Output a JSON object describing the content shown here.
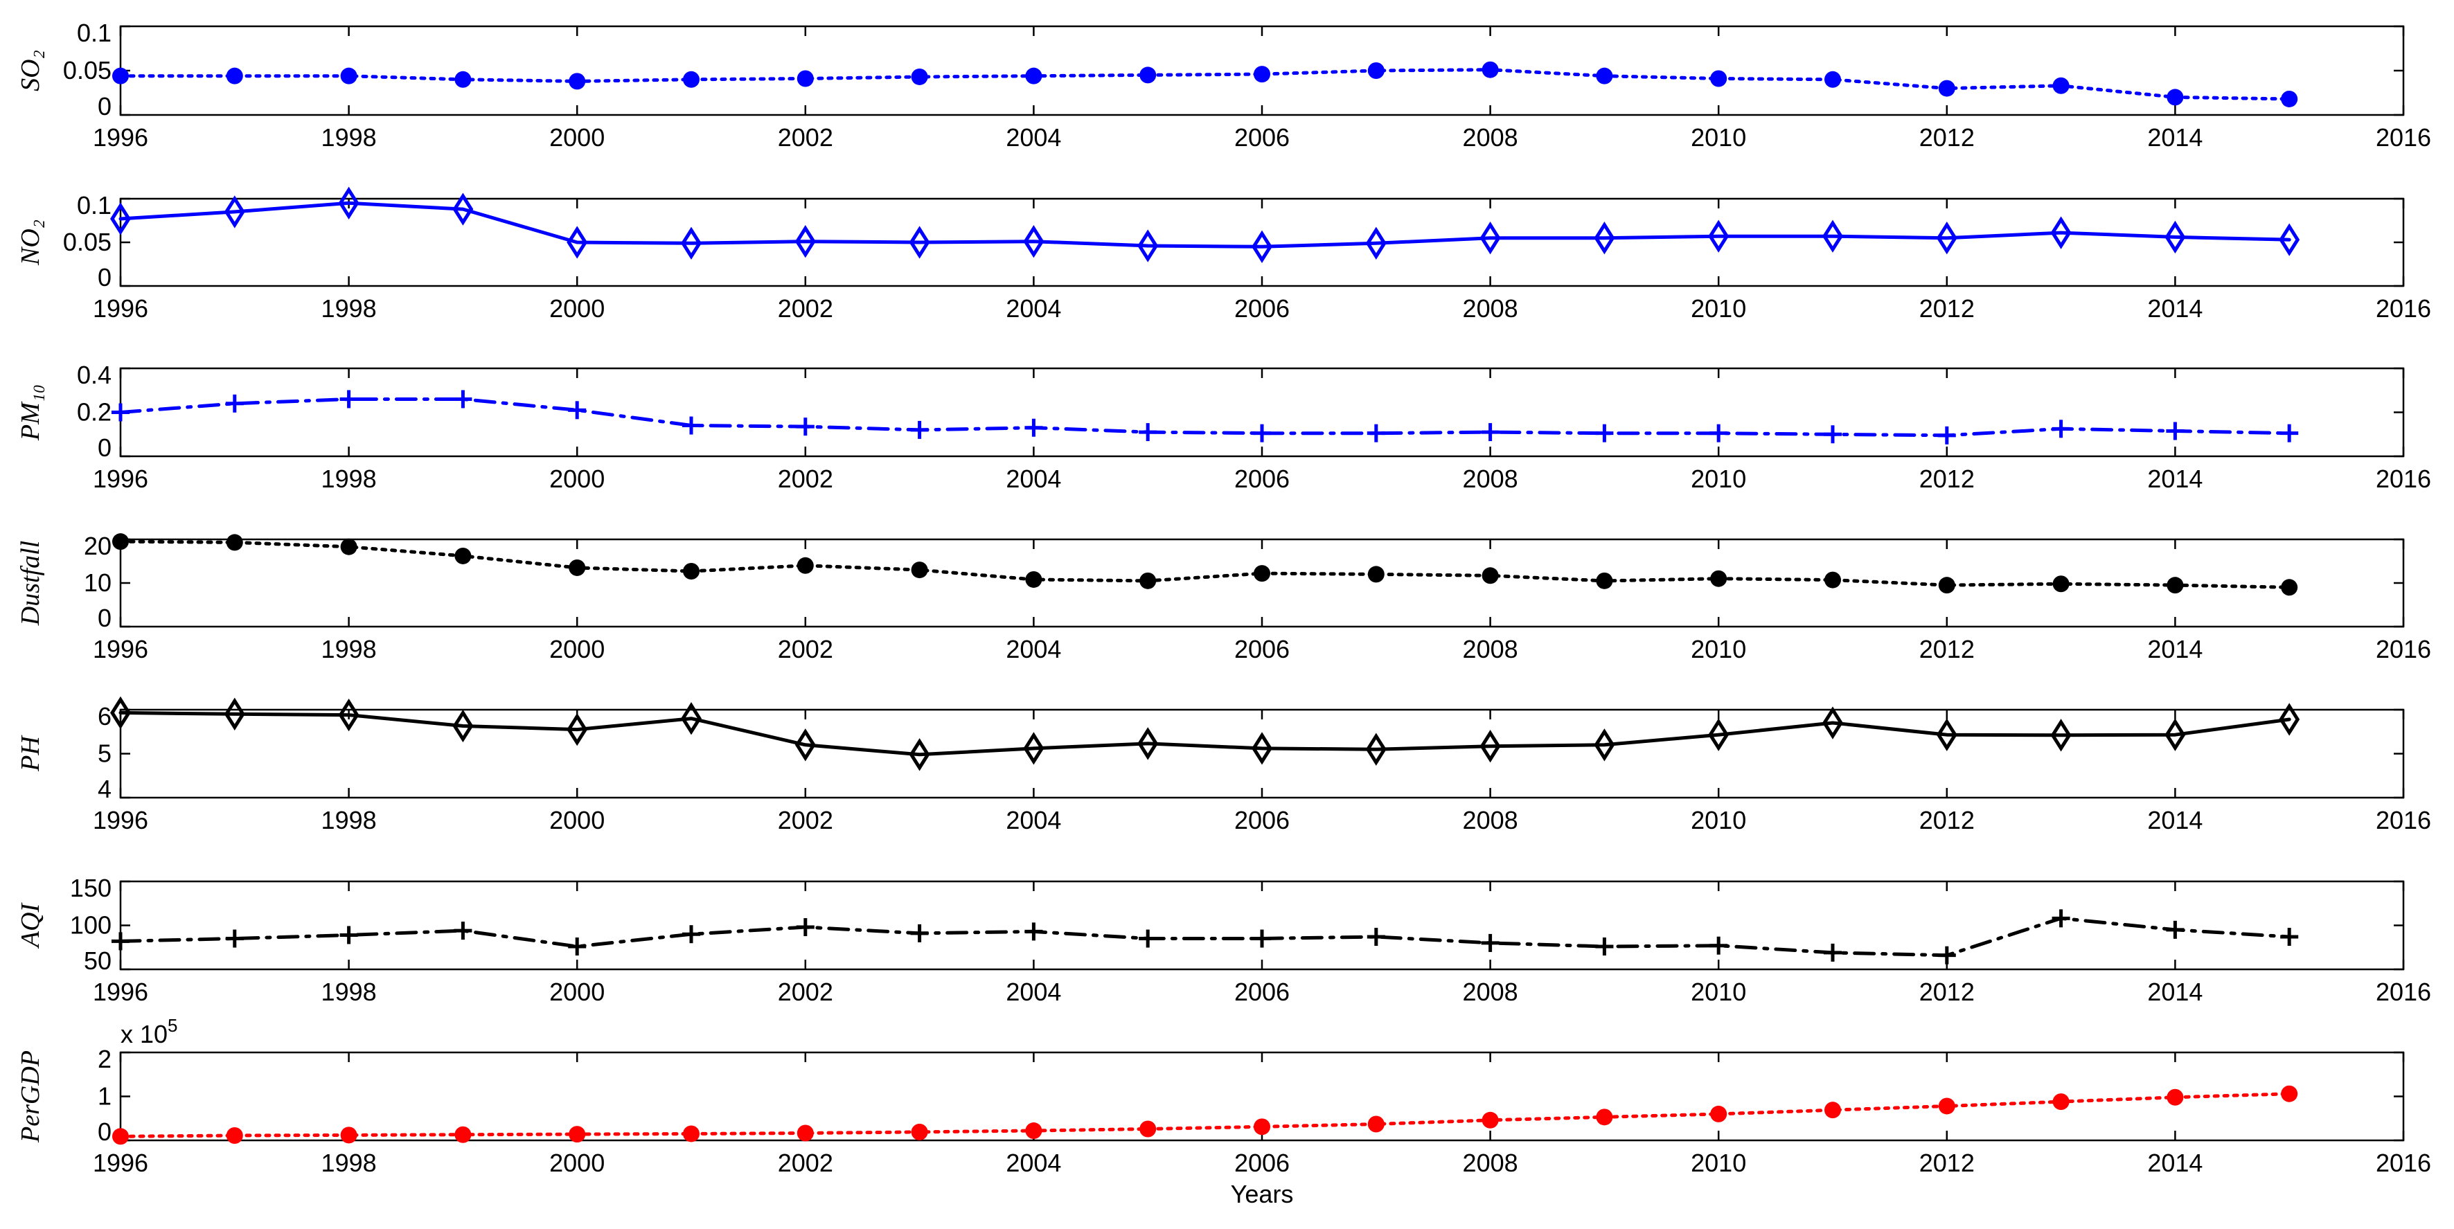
{
  "chart_data": [
    {
      "type": "line",
      "ylabel": "SO₂",
      "ylim": [
        0,
        0.1
      ],
      "yticks": [
        0,
        0.05,
        0.1
      ],
      "ytick_labels": [
        "0",
        "0.05",
        "0.1"
      ],
      "xlim": [
        1996,
        2016
      ],
      "xticks": [
        1996,
        1998,
        2000,
        2002,
        2004,
        2006,
        2008,
        2010,
        2012,
        2014,
        2016
      ],
      "xtick_labels": [
        "1996",
        "1998",
        "2000",
        "2002",
        "2004",
        "2006",
        "2008",
        "2010",
        "2012",
        "2014",
        "2016"
      ],
      "series": [
        {
          "name": "SO2",
          "color": "#0000ff",
          "line": "dotted",
          "marker": "circle",
          "x": [
            1996,
            1997,
            1998,
            1999,
            2000,
            2001,
            2002,
            2003,
            2004,
            2005,
            2006,
            2007,
            2008,
            2009,
            2010,
            2011,
            2012,
            2013,
            2014,
            2015
          ],
          "values": [
            0.044,
            0.044,
            0.044,
            0.04,
            0.038,
            0.04,
            0.041,
            0.043,
            0.044,
            0.045,
            0.046,
            0.05,
            0.051,
            0.044,
            0.041,
            0.04,
            0.03,
            0.033,
            0.02,
            0.018
          ]
        }
      ]
    },
    {
      "type": "line",
      "ylabel": "NO₂",
      "ylim": [
        0,
        0.1
      ],
      "yticks": [
        0,
        0.05,
        0.1
      ],
      "ytick_labels": [
        "0",
        "0.05",
        "0.1"
      ],
      "xlim": [
        1996,
        2016
      ],
      "xticks": [
        1996,
        1998,
        2000,
        2002,
        2004,
        2006,
        2008,
        2010,
        2012,
        2014,
        2016
      ],
      "xtick_labels": [
        "1996",
        "1998",
        "2000",
        "2002",
        "2004",
        "2006",
        "2008",
        "2010",
        "2012",
        "2014",
        "2016"
      ],
      "series": [
        {
          "name": "NO2",
          "color": "#0000ff",
          "line": "solid",
          "marker": "diamond",
          "x": [
            1996,
            1997,
            1998,
            1999,
            2000,
            2001,
            2002,
            2003,
            2004,
            2005,
            2006,
            2007,
            2008,
            2009,
            2010,
            2011,
            2012,
            2013,
            2014,
            2015
          ],
          "values": [
            0.077,
            0.085,
            0.095,
            0.088,
            0.05,
            0.049,
            0.051,
            0.05,
            0.051,
            0.046,
            0.045,
            0.049,
            0.055,
            0.055,
            0.057,
            0.057,
            0.055,
            0.061,
            0.056,
            0.053
          ]
        }
      ]
    },
    {
      "type": "line",
      "ylabel": "PM₁₀",
      "ylim": [
        0,
        0.4
      ],
      "yticks": [
        0,
        0.2,
        0.4
      ],
      "ytick_labels": [
        "0",
        "0.2",
        "0.4"
      ],
      "xlim": [
        1996,
        2016
      ],
      "xticks": [
        1996,
        1998,
        2000,
        2002,
        2004,
        2006,
        2008,
        2010,
        2012,
        2014,
        2016
      ],
      "xtick_labels": [
        "1996",
        "1998",
        "2000",
        "2002",
        "2004",
        "2006",
        "2008",
        "2010",
        "2012",
        "2014",
        "2016"
      ],
      "series": [
        {
          "name": "PM10",
          "color": "#0000ff",
          "line": "dashdot",
          "marker": "plus",
          "x": [
            1996,
            1997,
            1998,
            1999,
            2000,
            2001,
            2002,
            2003,
            2004,
            2005,
            2006,
            2007,
            2008,
            2009,
            2010,
            2011,
            2012,
            2013,
            2014,
            2015
          ],
          "values": [
            0.2,
            0.24,
            0.26,
            0.26,
            0.21,
            0.14,
            0.135,
            0.12,
            0.13,
            0.11,
            0.105,
            0.105,
            0.11,
            0.105,
            0.105,
            0.1,
            0.095,
            0.125,
            0.115,
            0.105
          ]
        }
      ]
    },
    {
      "type": "line",
      "ylabel": "Dustfall",
      "ylim": [
        0,
        20
      ],
      "yticks": [
        0,
        10,
        20
      ],
      "ytick_labels": [
        "0",
        "10",
        "20"
      ],
      "xlim": [
        1996,
        2016
      ],
      "xticks": [
        1996,
        1998,
        2000,
        2002,
        2004,
        2006,
        2008,
        2010,
        2012,
        2014,
        2016
      ],
      "xtick_labels": [
        "1996",
        "1998",
        "2000",
        "2002",
        "2004",
        "2006",
        "2008",
        "2010",
        "2012",
        "2014",
        "2016"
      ],
      "series": [
        {
          "name": "Dustfall",
          "color": "#000000",
          "line": "dotted",
          "marker": "circle",
          "x": [
            1996,
            1997,
            1998,
            1999,
            2000,
            2001,
            2002,
            2003,
            2004,
            2005,
            2006,
            2007,
            2008,
            2009,
            2010,
            2011,
            2012,
            2013,
            2014,
            2015
          ],
          "values": [
            19.5,
            19.3,
            18.3,
            16.2,
            13.5,
            12.7,
            14,
            13,
            10.8,
            10.5,
            12.2,
            12,
            11.7,
            10.5,
            11,
            10.7,
            9.5,
            9.8,
            9.5,
            9
          ]
        }
      ]
    },
    {
      "type": "line",
      "ylabel": "PH",
      "ylim": [
        4,
        6
      ],
      "yticks": [
        4,
        5,
        6
      ],
      "ytick_labels": [
        "4",
        "5",
        "6"
      ],
      "xlim": [
        1996,
        2016
      ],
      "xticks": [
        1996,
        1998,
        2000,
        2002,
        2004,
        2006,
        2008,
        2010,
        2012,
        2014,
        2016
      ],
      "xtick_labels": [
        "1996",
        "1998",
        "2000",
        "2002",
        "2004",
        "2006",
        "2008",
        "2010",
        "2012",
        "2014",
        "2016"
      ],
      "series": [
        {
          "name": "PH",
          "color": "#000000",
          "line": "solid",
          "marker": "diamond",
          "x": [
            1996,
            1997,
            1998,
            1999,
            2000,
            2001,
            2002,
            2003,
            2004,
            2005,
            2006,
            2007,
            2008,
            2009,
            2010,
            2011,
            2012,
            2013,
            2014,
            2015
          ],
          "values": [
            5.93,
            5.9,
            5.88,
            5.63,
            5.55,
            5.8,
            5.2,
            4.98,
            5.12,
            5.23,
            5.12,
            5.1,
            5.17,
            5.2,
            5.43,
            5.7,
            5.43,
            5.42,
            5.43,
            5.78
          ]
        }
      ]
    },
    {
      "type": "line",
      "ylabel": "AQI",
      "ylim": [
        50,
        150
      ],
      "yticks": [
        50,
        100,
        150
      ],
      "ytick_labels": [
        "50",
        "100",
        "150"
      ],
      "xlim": [
        1996,
        2016
      ],
      "xticks": [
        1996,
        1998,
        2000,
        2002,
        2004,
        2006,
        2008,
        2010,
        2012,
        2014,
        2016
      ],
      "xtick_labels": [
        "1996",
        "1998",
        "2000",
        "2002",
        "2004",
        "2006",
        "2008",
        "2010",
        "2012",
        "2014",
        "2016"
      ],
      "series": [
        {
          "name": "AQI",
          "color": "#000000",
          "line": "dashdot",
          "marker": "plus",
          "x": [
            1996,
            1997,
            1998,
            1999,
            2000,
            2001,
            2002,
            2003,
            2004,
            2005,
            2006,
            2007,
            2008,
            2009,
            2010,
            2011,
            2012,
            2013,
            2014,
            2015
          ],
          "values": [
            82,
            85,
            89,
            94,
            76,
            90,
            98,
            91,
            93,
            85,
            85,
            87,
            80,
            76,
            77,
            69,
            66,
            108,
            95,
            87
          ]
        }
      ]
    },
    {
      "type": "line",
      "ylabel": "PerGDP",
      "ylim": [
        0,
        200000
      ],
      "yticks": [
        0,
        100000,
        200000
      ],
      "ytick_labels": [
        "0",
        "1",
        "2"
      ],
      "scale_label": "x 10",
      "scale_exponent": "5",
      "xlabel": "Years",
      "xlim": [
        1996,
        2016
      ],
      "xticks": [
        1996,
        1998,
        2000,
        2002,
        2004,
        2006,
        2008,
        2010,
        2012,
        2014,
        2016
      ],
      "xtick_labels": [
        "1996",
        "1998",
        "2000",
        "2002",
        "2004",
        "2006",
        "2008",
        "2010",
        "2012",
        "2014",
        "2016"
      ],
      "series": [
        {
          "name": "PerGDP",
          "color": "#ff0000",
          "line": "dotted",
          "marker": "circle",
          "x": [
            1996,
            1997,
            1998,
            1999,
            2000,
            2001,
            2002,
            2003,
            2004,
            2005,
            2006,
            2007,
            2008,
            2009,
            2010,
            2011,
            2012,
            2013,
            2014,
            2015
          ],
          "values": [
            9000,
            11000,
            12000,
            13000,
            14000,
            15000,
            16500,
            19000,
            22000,
            26000,
            31000,
            37000,
            46000,
            53000,
            60000,
            69000,
            78000,
            88000,
            98000,
            106000
          ]
        }
      ]
    }
  ]
}
